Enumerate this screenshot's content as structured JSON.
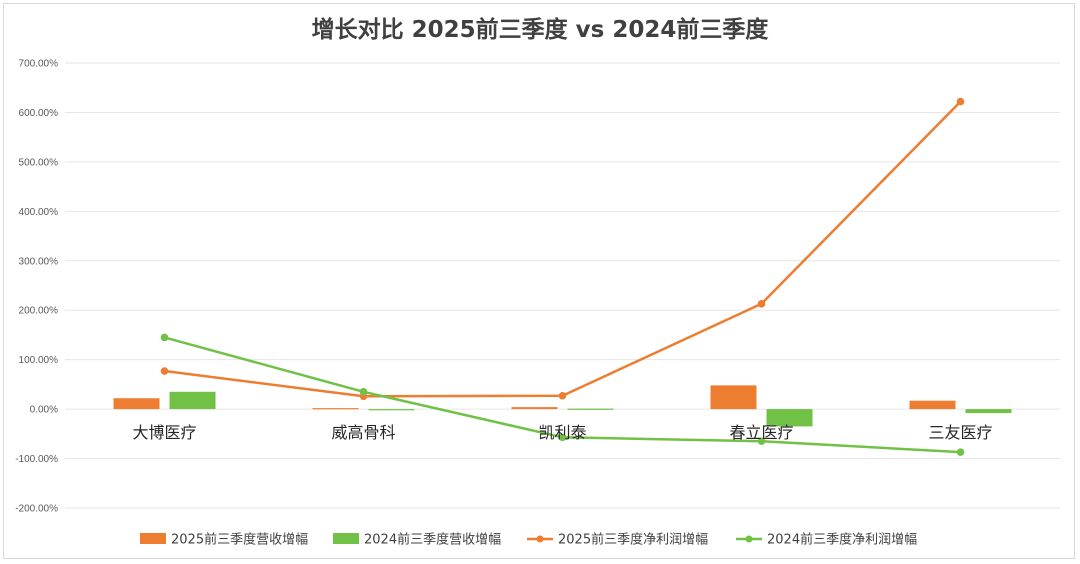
{
  "chart_data": {
    "type": "bar+line",
    "title": "增长对比 2025前三季度 vs 2024前三季度",
    "categories": [
      "大博医疗",
      "威高骨科",
      "凯利泰",
      "春立医疗",
      "三友医疗"
    ],
    "y_ticks": [
      "700.00%",
      "600.00%",
      "500.00%",
      "400.00%",
      "300.00%",
      "200.00%",
      "100.00%",
      "0.00%",
      "-100.00%",
      "-200.00%"
    ],
    "ylim": [
      -200,
      700
    ],
    "grid": true,
    "legend_position": "bottom",
    "series": [
      {
        "name": "2025前三季度营收增幅",
        "kind": "bar",
        "color": "#ED7D31",
        "values": [
          22,
          2,
          4,
          48,
          17
        ]
      },
      {
        "name": "2024前三季度营收增幅",
        "kind": "bar",
        "color": "#70C146",
        "values": [
          35,
          0,
          1,
          -35,
          -8
        ]
      },
      {
        "name": "2025前三季度净利润增幅",
        "kind": "line",
        "color": "#ED7D31",
        "values": [
          77,
          26,
          27,
          213,
          622
        ]
      },
      {
        "name": "2024前三季度净利润增幅",
        "kind": "line",
        "color": "#70C146",
        "values": [
          145,
          35,
          -57,
          -65,
          -87
        ]
      }
    ]
  }
}
